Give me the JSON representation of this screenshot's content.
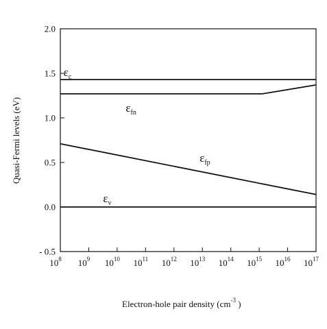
{
  "chart_data": {
    "type": "line",
    "xlabel": "Electron-hole pair density (cm",
    "xlabel_exponent": "-3",
    "xlabel_close": " )",
    "ylabel": "Quasi-Fermi levels (eV)",
    "xscale": "log",
    "xlim": [
      100000000.0,
      1e+17
    ],
    "ylim": [
      -0.5,
      2.0
    ],
    "x_ticks": [
      {
        "base": "10",
        "exp": "8",
        "value": 100000000.0
      },
      {
        "base": "10",
        "exp": "9",
        "value": 1000000000.0
      },
      {
        "base": "10",
        "exp": "10",
        "value": 10000000000.0
      },
      {
        "base": "10",
        "exp": "11",
        "value": 100000000000.0
      },
      {
        "base": "10",
        "exp": "12",
        "value": 1000000000000.0
      },
      {
        "base": "10",
        "exp": "13",
        "value": 10000000000000.0
      },
      {
        "base": "10",
        "exp": "14",
        "value": 100000000000000.0
      },
      {
        "base": "10",
        "exp": "15",
        "value": 1000000000000000.0
      },
      {
        "base": "10",
        "exp": "16",
        "value": 1e+16
      },
      {
        "base": "10",
        "exp": "17",
        "value": 1e+17
      }
    ],
    "y_ticks": [
      {
        "label": "2.0",
        "value": 2.0
      },
      {
        "label": "1.5",
        "value": 1.5
      },
      {
        "label": "1.0",
        "value": 1.0
      },
      {
        "label": "0.5",
        "value": 0.5
      },
      {
        "label": "0.0",
        "value": 0.0
      },
      {
        "label": "- 0.5",
        "value": -0.5
      }
    ],
    "grid": false,
    "series": [
      {
        "name": "Ec",
        "symbol": "ε",
        "sub": "c",
        "x": [
          100000000.0,
          1e+17
        ],
        "y": [
          1.43,
          1.43
        ]
      },
      {
        "name": "Efn",
        "symbol": "ε",
        "sub": "fn",
        "x": [
          100000000.0,
          1300000000000000.0,
          1e+17
        ],
        "y": [
          1.27,
          1.27,
          1.37
        ]
      },
      {
        "name": "Efp",
        "symbol": "ε",
        "sub": "fp",
        "x": [
          100000000.0,
          1e+17
        ],
        "y": [
          0.71,
          0.14
        ]
      },
      {
        "name": "Ev",
        "symbol": "ε",
        "sub": "v",
        "x": [
          100000000.0,
          1e+17
        ],
        "y": [
          0.0,
          0.0
        ]
      }
    ]
  }
}
